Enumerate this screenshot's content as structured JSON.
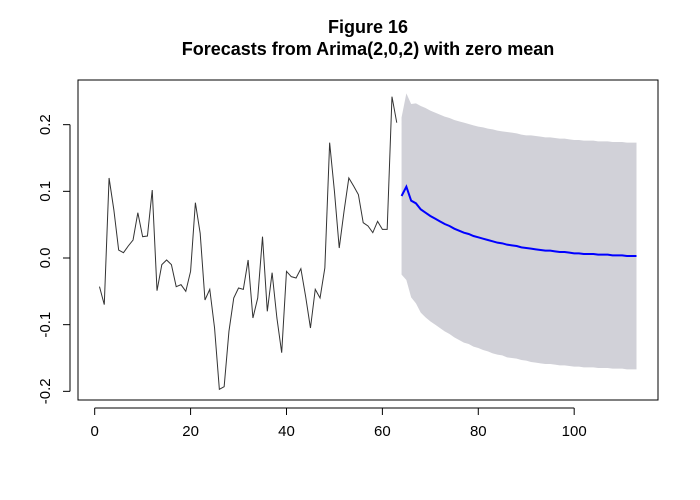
{
  "chart_data": {
    "type": "line",
    "title": "Figure 16",
    "subtitle": "Forecasts from Arima(2,0,2) with zero mean",
    "xlim": [
      -3.48,
      117.48
    ],
    "ylim": [
      -0.213,
      0.267
    ],
    "xticks": [
      0,
      20,
      40,
      60,
      80,
      100
    ],
    "yticks": [
      -0.2,
      -0.1,
      {
        "value": 0,
        "label": "0.0"
      },
      0.1,
      0.2
    ],
    "series": [
      {
        "color": "#333333",
        "x": [
          1,
          2,
          3,
          4,
          5,
          6,
          7,
          8,
          9,
          10,
          11,
          12,
          13,
          14,
          15,
          16,
          17,
          18,
          19,
          20,
          21,
          22,
          23,
          24,
          25,
          26,
          27,
          28,
          29,
          30,
          31,
          32,
          33,
          34,
          35,
          36,
          37,
          38,
          39,
          40,
          41,
          42,
          43,
          44,
          45,
          46,
          47,
          48,
          49,
          50,
          51,
          52,
          53,
          54,
          55,
          56,
          57,
          58,
          59,
          60,
          61,
          62,
          63
        ],
        "values": [
          -0.043,
          -0.07,
          0.12,
          0.072,
          0.012,
          0.008,
          0.018,
          0.027,
          0.068,
          0.032,
          0.033,
          0.102,
          -0.049,
          -0.01,
          -0.003,
          -0.01,
          -0.043,
          -0.04,
          -0.05,
          -0.02,
          0.083,
          0.037,
          -0.063,
          -0.047,
          -0.105,
          -0.197,
          -0.193,
          -0.11,
          -0.06,
          -0.045,
          -0.047,
          -0.003,
          -0.09,
          -0.06,
          0.032,
          -0.08,
          -0.022,
          -0.09,
          -0.142,
          -0.02,
          -0.028,
          -0.03,
          -0.016,
          -0.058,
          -0.105,
          -0.047,
          -0.06,
          -0.015,
          0.173,
          0.1,
          0.015,
          0.07,
          0.12,
          0.108,
          0.095,
          0.053,
          0.048,
          0.038,
          0.055,
          0.043,
          0.043,
          0.242,
          0.203
        ]
      },
      {
        "color": "#0000ff",
        "band_color": "#d1d1d8",
        "x": [
          64,
          65,
          66,
          67,
          68,
          69,
          70,
          71,
          72,
          73,
          74,
          75,
          76,
          77,
          78,
          79,
          80,
          81,
          82,
          83,
          84,
          85,
          86,
          87,
          88,
          89,
          90,
          91,
          92,
          93,
          94,
          95,
          96,
          97,
          98,
          99,
          100,
          101,
          102,
          103,
          104,
          105,
          106,
          107,
          108,
          109,
          110,
          111,
          112,
          113
        ],
        "values": [
          0.093,
          0.107,
          0.086,
          0.082,
          0.073,
          0.068,
          0.063,
          0.059,
          0.055,
          0.051,
          0.048,
          0.044,
          0.041,
          0.038,
          0.036,
          0.033,
          0.031,
          0.029,
          0.027,
          0.025,
          0.023,
          0.022,
          0.02,
          0.019,
          0.018,
          0.016,
          0.015,
          0.014,
          0.013,
          0.012,
          0.011,
          0.011,
          0.01,
          0.009,
          0.009,
          0.008,
          0.007,
          0.007,
          0.006,
          0.006,
          0.006,
          0.005,
          0.005,
          0.005,
          0.004,
          0.004,
          0.004,
          0.003,
          0.003,
          0.003
        ],
        "upper": [
          0.211,
          0.247,
          0.231,
          0.232,
          0.228,
          0.225,
          0.221,
          0.218,
          0.215,
          0.212,
          0.21,
          0.207,
          0.205,
          0.203,
          0.201,
          0.199,
          0.197,
          0.196,
          0.194,
          0.193,
          0.191,
          0.19,
          0.189,
          0.188,
          0.187,
          0.185,
          0.184,
          0.184,
          0.183,
          0.182,
          0.181,
          0.181,
          0.18,
          0.179,
          0.179,
          0.178,
          0.177,
          0.177,
          0.176,
          0.176,
          0.176,
          0.175,
          0.175,
          0.175,
          0.174,
          0.174,
          0.174,
          0.173,
          0.173,
          0.173
        ],
        "lower": [
          -0.025,
          -0.033,
          -0.059,
          -0.068,
          -0.082,
          -0.089,
          -0.095,
          -0.1,
          -0.105,
          -0.11,
          -0.114,
          -0.119,
          -0.123,
          -0.127,
          -0.129,
          -0.133,
          -0.135,
          -0.138,
          -0.14,
          -0.143,
          -0.145,
          -0.146,
          -0.149,
          -0.15,
          -0.151,
          -0.153,
          -0.154,
          -0.156,
          -0.157,
          -0.158,
          -0.159,
          -0.159,
          -0.16,
          -0.161,
          -0.161,
          -0.162,
          -0.163,
          -0.163,
          -0.164,
          -0.164,
          -0.164,
          -0.165,
          -0.165,
          -0.165,
          -0.166,
          -0.166,
          -0.166,
          -0.167,
          -0.167,
          -0.167
        ]
      }
    ]
  }
}
